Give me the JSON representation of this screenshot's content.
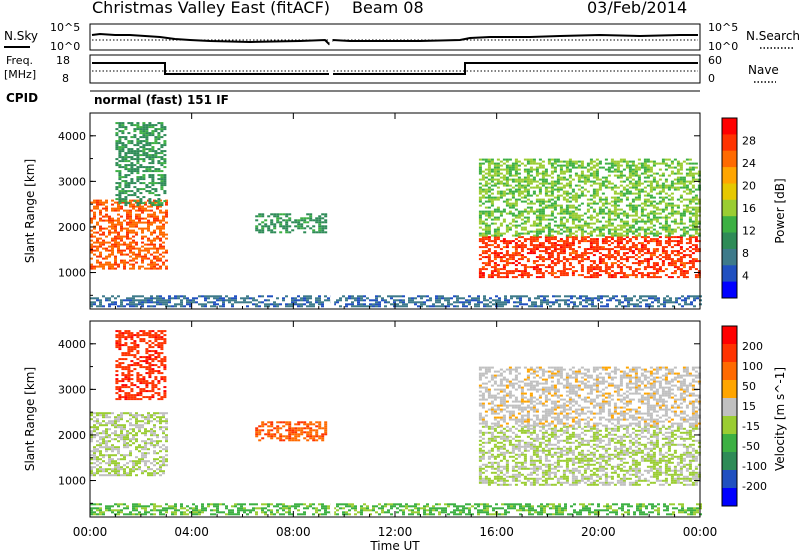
{
  "header": {
    "station": "Christmas Valley East (fitACF)",
    "beam": "Beam 08",
    "date": "03/Feb/2014"
  },
  "panel_nsky": {
    "left_label": "N.Sky",
    "right_label": "N.Search",
    "left_ticks": [
      "10^5",
      "10^0"
    ],
    "right_ticks": [
      "10^5",
      "10^0"
    ]
  },
  "panel_freq": {
    "left_label_line1": "Freq.",
    "left_label_line2": "[MHz]",
    "right_label": "Nave",
    "left_ticks": [
      "18",
      "8"
    ],
    "right_ticks": [
      "60",
      "0"
    ]
  },
  "cpid": {
    "label": "CPID",
    "value": "normal (fast) 151 IF"
  },
  "chart_data": [
    {
      "type": "heatmap",
      "name": "power",
      "ylabel": "Slant Range [km]",
      "yticks": [
        "4000",
        "3000",
        "2000",
        "1000"
      ],
      "ylim": [
        200,
        4500
      ],
      "colorbar_label": "Power [dB]",
      "colorbar_ticks": [
        "28",
        "24",
        "20",
        "16",
        "12",
        "8",
        "4"
      ],
      "colorbar_range": [
        0,
        30
      ],
      "colors": [
        "#0000ff",
        "#2050c0",
        "#3d7a8a",
        "#2e8b57",
        "#3cb043",
        "#9acd32",
        "#e6c800",
        "#ffa500",
        "#ff6a00",
        "#ff3300",
        "#ff0000"
      ],
      "regions": [
        {
          "t": [
            0.0,
            3.0
          ],
          "r": [
            1100,
            2600
          ],
          "value": 24
        },
        {
          "t": [
            1.0,
            3.0
          ],
          "r": [
            2500,
            4300
          ],
          "value": 10
        },
        {
          "t": [
            6.5,
            9.3
          ],
          "r": [
            1900,
            2300
          ],
          "value": 10
        },
        {
          "t": [
            15.3,
            24.0
          ],
          "r": [
            900,
            1800
          ],
          "value": 26
        },
        {
          "t": [
            15.3,
            24.0
          ],
          "r": [
            1800,
            3500
          ],
          "value": 14
        },
        {
          "t": [
            0.0,
            24.0
          ],
          "r": [
            250,
            500
          ],
          "value": 6
        }
      ]
    },
    {
      "type": "heatmap",
      "name": "velocity",
      "ylabel": "Slant Range [km]",
      "yticks": [
        "4000",
        "3000",
        "2000",
        "1000"
      ],
      "ylim": [
        200,
        4500
      ],
      "colorbar_label": "Velocity [m s^-1]",
      "colorbar_ticks": [
        "200",
        "100",
        "50",
        "15",
        "-15",
        "-50",
        "-100",
        "-200"
      ],
      "colorbar_range": [
        -250,
        250
      ],
      "colors": [
        "#0000ff",
        "#2050c0",
        "#2e8b57",
        "#3cb043",
        "#9acd32",
        "#c0c0c0",
        "#ffa500",
        "#ff6a00",
        "#ff3300",
        "#ff0000"
      ],
      "regions": [
        {
          "t": [
            0.0,
            3.0
          ],
          "r": [
            1100,
            2500
          ],
          "value": 0
        },
        {
          "t": [
            1.0,
            3.0
          ],
          "r": [
            2800,
            4300
          ],
          "value": 180
        },
        {
          "t": [
            6.5,
            9.3
          ],
          "r": [
            1900,
            2300
          ],
          "value": 140
        },
        {
          "t": [
            15.3,
            24.0
          ],
          "r": [
            900,
            2200
          ],
          "value": 0
        },
        {
          "t": [
            15.3,
            24.0
          ],
          "r": [
            2200,
            3500
          ],
          "value": 30
        },
        {
          "t": [
            0.0,
            24.0
          ],
          "r": [
            250,
            500
          ],
          "value": -60
        }
      ]
    }
  ],
  "xaxis": {
    "label": "Time UT",
    "ticks": [
      "00:00",
      "04:00",
      "08:00",
      "12:00",
      "16:00",
      "20:00",
      "00:00"
    ],
    "range": [
      0,
      24
    ]
  }
}
